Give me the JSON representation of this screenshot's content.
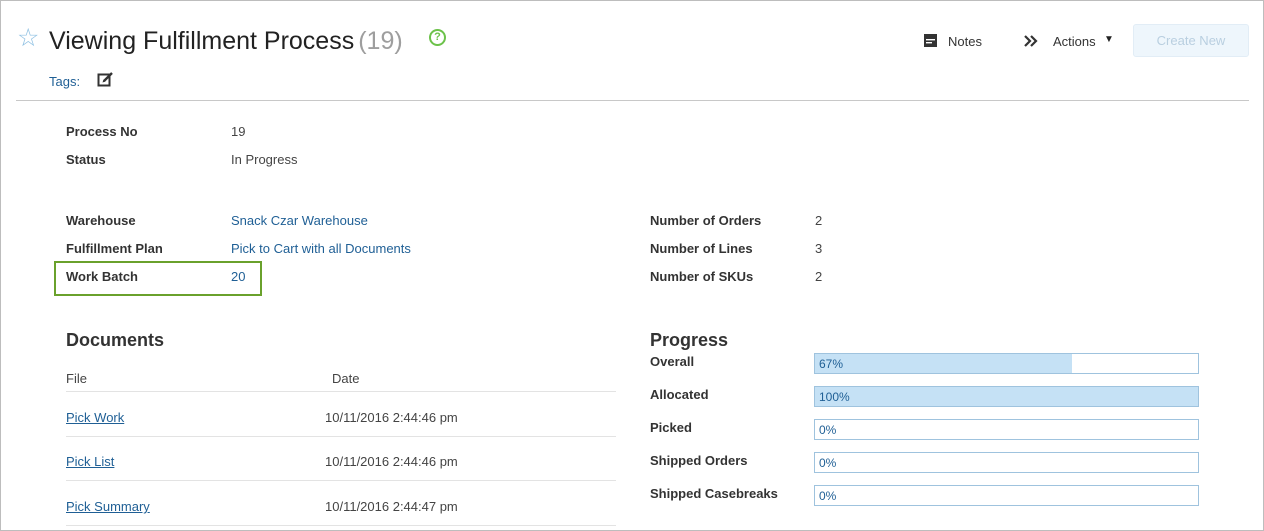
{
  "header": {
    "title": "Viewing Fulfillment Process",
    "count": "(19)",
    "tags_label": "Tags:",
    "notes_label": "Notes",
    "actions_label": "Actions",
    "create_label": "Create New"
  },
  "summary": {
    "process_no_label": "Process No",
    "process_no": "19",
    "status_label": "Status",
    "status": "In Progress"
  },
  "details": {
    "warehouse_label": "Warehouse",
    "warehouse": "Snack Czar Warehouse",
    "plan_label": "Fulfillment Plan",
    "plan": "Pick to Cart with all Documents",
    "batch_label": "Work Batch",
    "batch": "20",
    "orders_label": "Number of Orders",
    "orders": "2",
    "lines_label": "Number of Lines",
    "lines": "3",
    "skus_label": "Number of SKUs",
    "skus": "2"
  },
  "documents": {
    "title": "Documents",
    "col_file": "File",
    "col_date": "Date",
    "rows": [
      {
        "file": "Pick Work",
        "date": "10/11/2016  2:44:46 pm"
      },
      {
        "file": "Pick List",
        "date": "10/11/2016  2:44:46 pm"
      },
      {
        "file": "Pick Summary",
        "date": "10/11/2016  2:44:47 pm"
      }
    ]
  },
  "progress": {
    "title": "Progress",
    "items": [
      {
        "label": "Overall",
        "text": "67%",
        "percent": 67
      },
      {
        "label": "Allocated",
        "text": "100%",
        "percent": 100
      },
      {
        "label": "Picked",
        "text": "0%",
        "percent": 0
      },
      {
        "label": "Shipped Orders",
        "text": "0%",
        "percent": 0
      },
      {
        "label": "Shipped Casebreaks",
        "text": "0%",
        "percent": 0
      }
    ]
  },
  "colors": {
    "accent_link": "#1f5f95",
    "highlight_border": "#6aa12c",
    "bar_fill": "#c5e1f5"
  }
}
